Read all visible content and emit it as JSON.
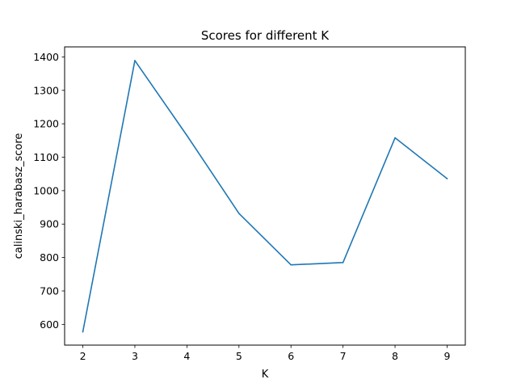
{
  "chart_data": {
    "type": "line",
    "title": "Scores for different K",
    "xlabel": "K",
    "ylabel": "calinski_harabasz_score",
    "x": [
      2,
      3,
      4,
      5,
      6,
      7,
      8,
      9
    ],
    "series": [
      {
        "values": [
          578,
          1389,
          1165,
          932,
          778,
          785,
          1158,
          1036
        ],
        "color": "#1f77b4"
      }
    ],
    "xlim": [
      1.65,
      9.35
    ],
    "ylim": [
      538,
      1430
    ],
    "xticks": [
      2,
      3,
      4,
      5,
      6,
      7,
      8,
      9
    ],
    "yticks": [
      600,
      700,
      800,
      900,
      1000,
      1100,
      1200,
      1300,
      1400
    ],
    "grid": false,
    "legend": "none"
  }
}
